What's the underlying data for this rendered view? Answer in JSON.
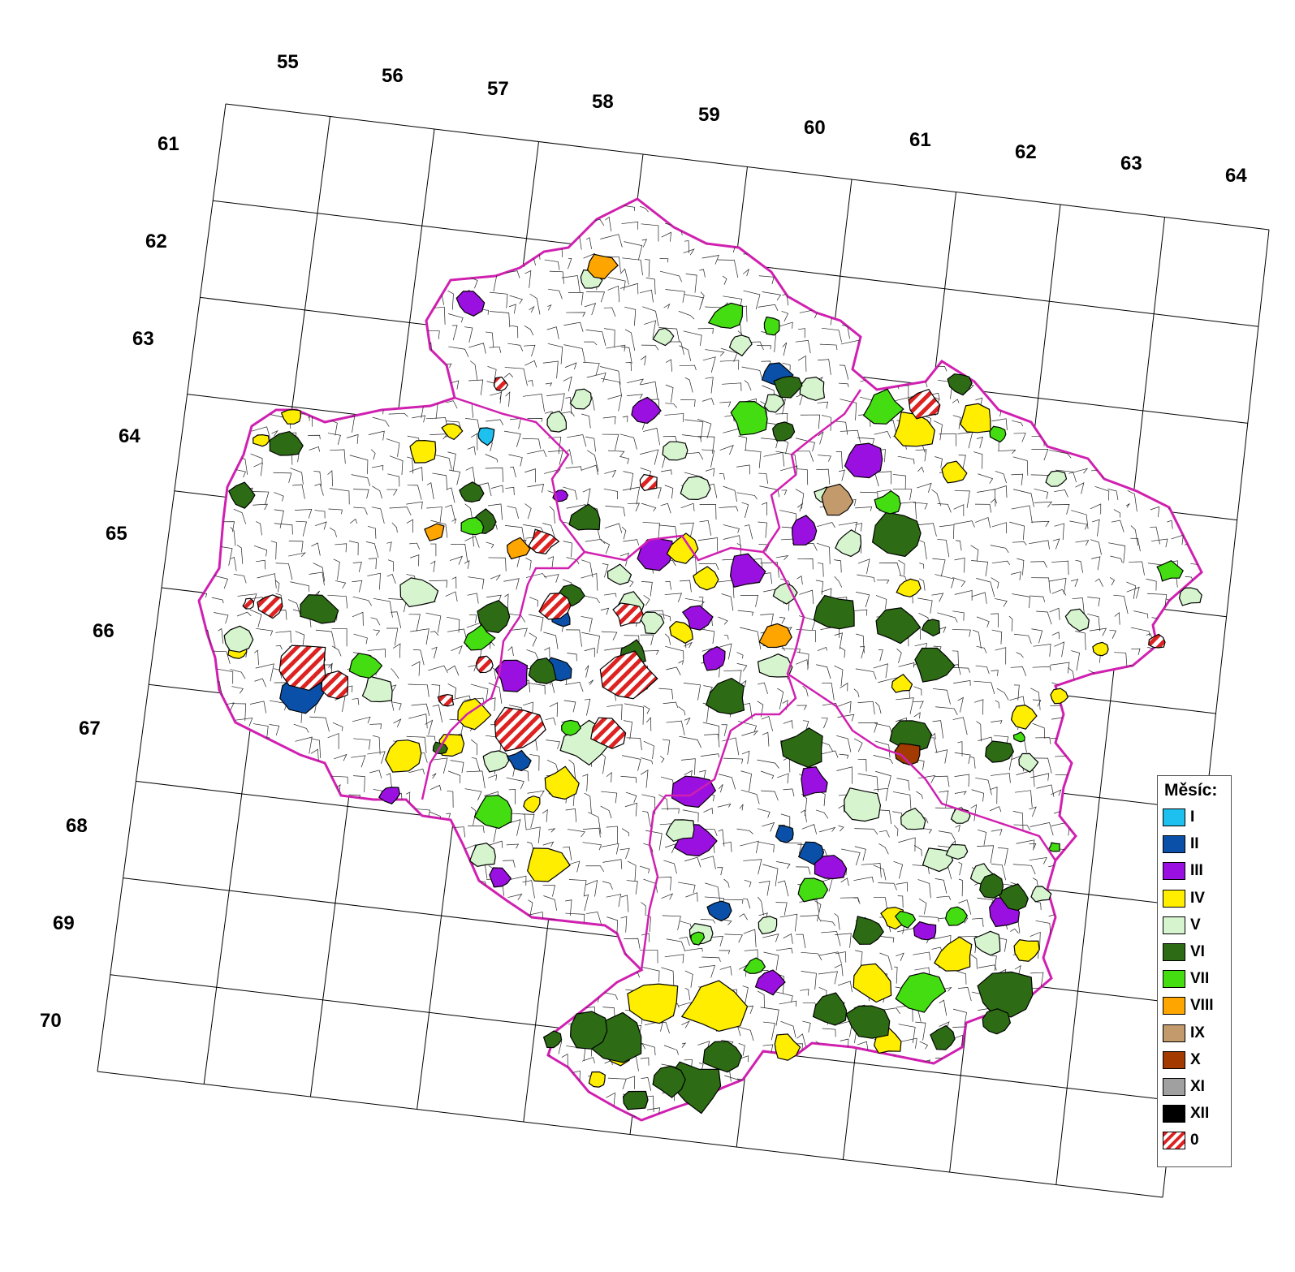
{
  "map": {
    "grid": {
      "column_labels": [
        "55",
        "56",
        "57",
        "58",
        "59",
        "60",
        "61",
        "62",
        "63",
        "64"
      ],
      "row_labels": [
        "61",
        "62",
        "63",
        "64",
        "65",
        "66",
        "67",
        "68",
        "69",
        "70"
      ]
    },
    "colors": {
      "region_border": "#d020b0",
      "district_border": "#000000",
      "grid_line": "#000000"
    }
  },
  "legend": {
    "title": "Měsíc:",
    "items": [
      {
        "label": "I",
        "color": "#1ec0f0"
      },
      {
        "label": "II",
        "color": "#0a50a8"
      },
      {
        "label": "III",
        "color": "#9a10e0"
      },
      {
        "label": "IV",
        "color": "#ffee00"
      },
      {
        "label": "V",
        "color": "#d6f5cf"
      },
      {
        "label": "VI",
        "color": "#2d6b14"
      },
      {
        "label": "VII",
        "color": "#44dd11"
      },
      {
        "label": "VIII",
        "color": "#ffa500"
      },
      {
        "label": "IX",
        "color": "#c39a6b"
      },
      {
        "label": "X",
        "color": "#a33a00"
      },
      {
        "label": "XI",
        "color": "#a0a0a0"
      },
      {
        "label": "XII",
        "color": "#000000"
      },
      {
        "label": "0",
        "color": "hatch-red"
      }
    ]
  }
}
